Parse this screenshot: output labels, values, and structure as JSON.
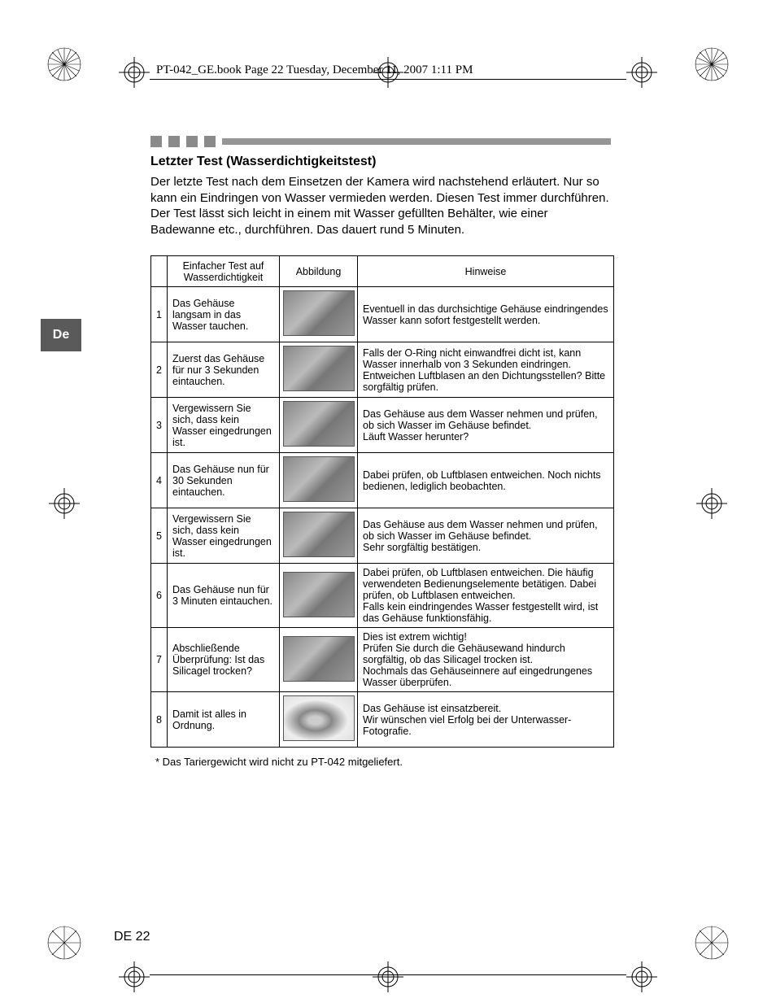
{
  "header": {
    "running_head": "PT-042_GE.book  Page 22  Tuesday, December 11, 2007  1:11 PM"
  },
  "lang_tab": "De",
  "heading": "Letzter Test (Wasserdichtigkeitstest)",
  "intro": "Der letzte Test nach dem Einsetzen der Kamera wird nachstehend erläutert. Nur so kann ein Eindringen von Wasser vermieden werden. Diesen Test immer durchführen. Der Test lässt sich leicht in einem mit Wasser gefüllten Behälter, wie einer Badewanne etc., durchführen. Das dauert rund 5 Minuten.",
  "table": {
    "headers": {
      "test": "Einfacher Test auf Wasserdichtigkeit",
      "image": "Abbildung",
      "hints": "Hinweise"
    },
    "rows": [
      {
        "n": "1",
        "test": "Das Gehäuse langsam in das Wasser tauchen.",
        "hint": "Eventuell in das durchsichtige Gehäuse eindringendes Wasser kann sofort festgestellt werden."
      },
      {
        "n": "2",
        "test": "Zuerst das Gehäuse für nur 3 Sekunden eintauchen.",
        "hint": "Falls der O-Ring nicht einwandfrei dicht ist, kann Wasser innerhalb von 3 Sekunden eindringen. Entweichen Luftblasen an den Dichtungsstellen? Bitte sorgfältig prüfen."
      },
      {
        "n": "3",
        "test": "Vergewissern Sie sich, dass kein Wasser eingedrungen ist.",
        "hint": "Das Gehäuse aus dem Wasser nehmen und prüfen, ob sich Wasser im Gehäuse befindet.\nLäuft Wasser herunter?"
      },
      {
        "n": "4",
        "test": "Das Gehäuse nun für 30 Sekunden eintauchen.",
        "hint": "Dabei prüfen, ob Luftblasen entweichen. Noch nichts bedienen, lediglich beobachten."
      },
      {
        "n": "5",
        "test": "Vergewissern Sie sich, dass kein Wasser eingedrungen ist.",
        "hint": "Das Gehäuse aus dem Wasser nehmen und prüfen, ob sich Wasser im Gehäuse befindet.\nSehr sorgfältig bestätigen."
      },
      {
        "n": "6",
        "test": "Das Gehäuse nun für 3 Minuten eintauchen.",
        "hint": "Dabei prüfen, ob Luftblasen entweichen. Die häufig verwendeten Bedienungselemente betätigen. Dabei prüfen, ob Luftblasen entweichen.\nFalls kein eindringendes Wasser festgestellt wird, ist das Gehäuse funktionsfähig."
      },
      {
        "n": "7",
        "test": "Abschließende Überprüfung: Ist das Silicagel trocken?",
        "hint": "Dies ist extrem wichtig!\nPrüfen Sie durch die Gehäusewand hindurch sorgfältig, ob das Silicagel trocken ist.\nNochmals das Gehäuseinnere auf eingedrungenes Wasser überprüfen."
      },
      {
        "n": "8",
        "test": "Damit ist alles in Ordnung.",
        "hint": "Das Gehäuse ist einsatzbereit.\nWir wünschen viel Erfolg bei der Unterwasser-Fotografie."
      }
    ]
  },
  "footnote": "*    Das Tariergewicht wird nicht zu PT-042 mitgeliefert.",
  "page_number": "DE 22",
  "reg_marks": {
    "color": "#000000"
  }
}
